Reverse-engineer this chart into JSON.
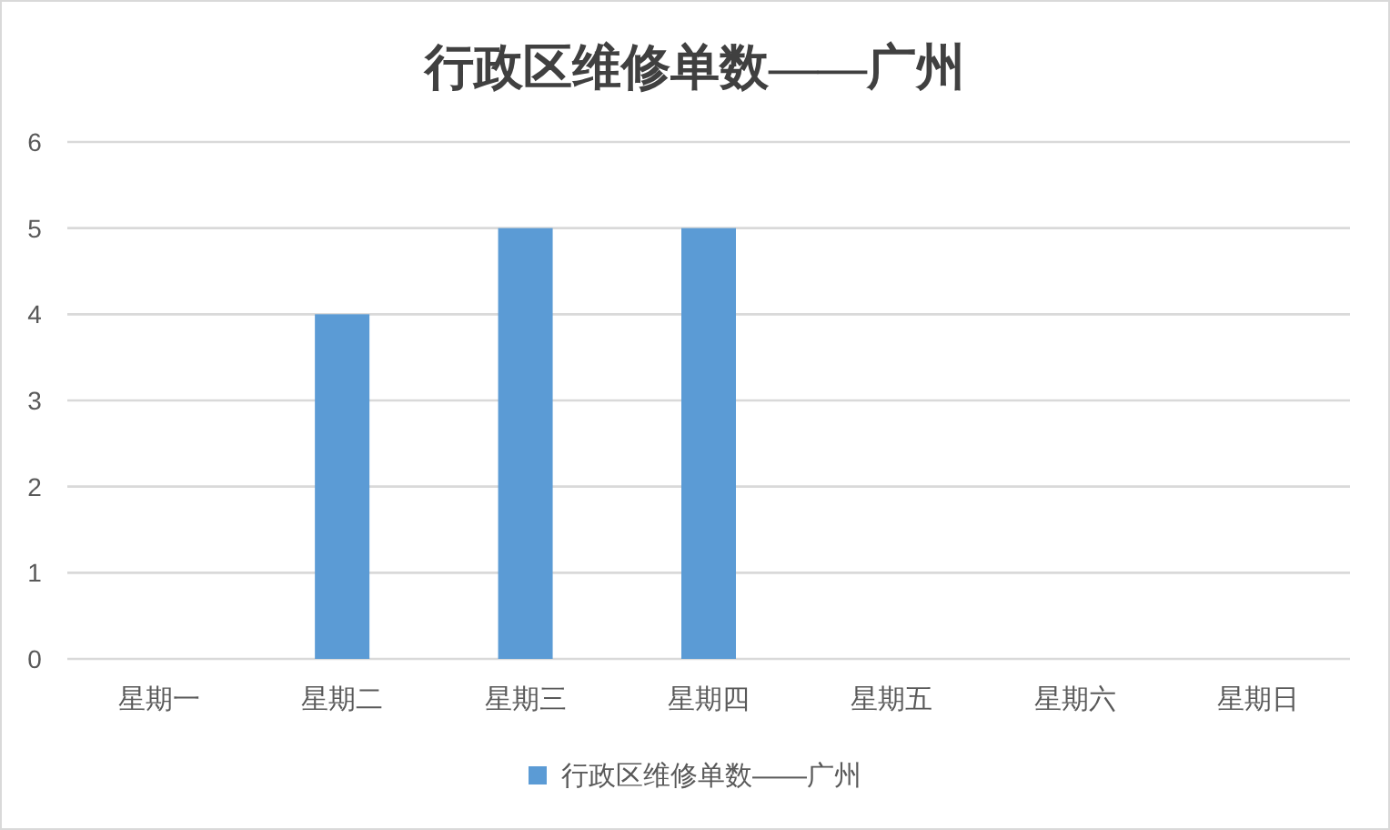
{
  "chart_data": {
    "type": "bar",
    "title": "行政区维修单数——广州",
    "categories": [
      "星期一",
      "星期二",
      "星期三",
      "星期四",
      "星期五",
      "星期六",
      "星期日"
    ],
    "series": [
      {
        "name": "行政区维修单数——广州",
        "color": "#5b9bd5",
        "values": [
          0,
          4,
          5,
          5,
          0,
          0,
          0
        ]
      }
    ],
    "ylim": [
      0,
      6
    ],
    "yticks": [
      0,
      1,
      2,
      3,
      4,
      5,
      6
    ],
    "grid": "y",
    "legend": "bottom"
  }
}
